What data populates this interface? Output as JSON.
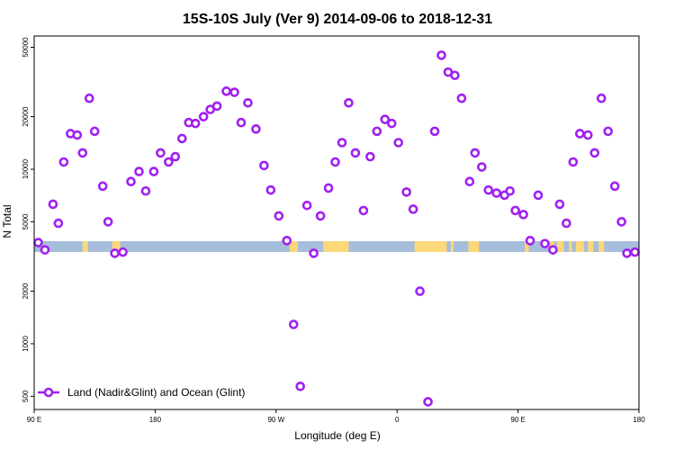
{
  "chart_data": {
    "type": "scatter",
    "title": "15S-10S July (Ver 9)   2014-09-06 to 2018-12-31",
    "xlabel": "Longitude (deg E)",
    "ylabel": "N Total",
    "x_ticks": [
      {
        "value": 90,
        "label": "90 E"
      },
      {
        "value": 180,
        "label": "180"
      },
      {
        "value": 270,
        "label": "90 W"
      },
      {
        "value": 360,
        "label": "0"
      },
      {
        "value": 450,
        "label": "90 E"
      },
      {
        "value": 540,
        "label": "180"
      }
    ],
    "y_scale": "log",
    "y_ticks": [
      500,
      1000,
      2000,
      5000,
      10000,
      20000,
      50000
    ],
    "xlim": [
      90,
      540
    ],
    "ylim": [
      420,
      58000
    ],
    "legend": {
      "position": "bottom-left",
      "label": "Land (Nadir&Glint) and Ocean (Glint)"
    },
    "marker_color": "#a020f0",
    "strip_colors": {
      "ocean": "#a6bddb",
      "land": "#fcd87a"
    },
    "land_segments": [
      [
        126,
        130
      ],
      [
        148,
        154
      ],
      [
        280,
        282
      ],
      [
        282,
        286
      ],
      [
        305,
        324
      ],
      [
        373,
        377
      ],
      [
        377,
        397
      ],
      [
        400,
        402
      ],
      [
        413,
        417
      ],
      [
        416,
        421
      ],
      [
        455,
        458
      ],
      [
        474,
        477
      ],
      [
        479,
        484
      ],
      [
        488,
        490
      ],
      [
        493,
        499
      ],
      [
        502,
        506
      ],
      [
        510,
        514
      ]
    ],
    "series": [
      {
        "name": "Land (Nadir&Glint) and Ocean (Glint)",
        "points": [
          [
            93,
            3800
          ],
          [
            98,
            3450
          ],
          [
            104,
            6300
          ],
          [
            108,
            4900
          ],
          [
            112,
            11000
          ],
          [
            117,
            16000
          ],
          [
            122,
            15700
          ],
          [
            126,
            12400
          ],
          [
            131,
            25500
          ],
          [
            135,
            16500
          ],
          [
            141,
            8000
          ],
          [
            145,
            5000
          ],
          [
            150,
            3300
          ],
          [
            156,
            3350
          ],
          [
            162,
            8500
          ],
          [
            168,
            9700
          ],
          [
            173,
            7500
          ],
          [
            179,
            9700
          ],
          [
            184,
            12400
          ],
          [
            190,
            11000
          ],
          [
            195,
            11800
          ],
          [
            200,
            15000
          ],
          [
            205,
            18500
          ],
          [
            210,
            18300
          ],
          [
            216,
            20000
          ],
          [
            221,
            22000
          ],
          [
            226,
            23000
          ],
          [
            233,
            28000
          ],
          [
            239,
            27600
          ],
          [
            244,
            18500
          ],
          [
            249,
            24000
          ],
          [
            255,
            17000
          ],
          [
            261,
            10500
          ],
          [
            266,
            7600
          ],
          [
            272,
            5400
          ],
          [
            278,
            3900
          ],
          [
            283,
            1290
          ],
          [
            288,
            570
          ],
          [
            293,
            6200
          ],
          [
            298,
            3300
          ],
          [
            303,
            5400
          ],
          [
            309,
            7800
          ],
          [
            314,
            11000
          ],
          [
            319,
            14200
          ],
          [
            324,
            24000
          ],
          [
            329,
            12400
          ],
          [
            335,
            5800
          ],
          [
            340,
            11800
          ],
          [
            345,
            16500
          ],
          [
            351,
            19300
          ],
          [
            356,
            18300
          ],
          [
            361,
            14200
          ],
          [
            367,
            7400
          ],
          [
            372,
            5900
          ],
          [
            377,
            2000
          ],
          [
            383,
            465
          ],
          [
            388,
            16500
          ],
          [
            393,
            45000
          ],
          [
            398,
            36000
          ],
          [
            403,
            34500
          ],
          [
            408,
            25500
          ],
          [
            414,
            8500
          ],
          [
            418,
            12400
          ],
          [
            423,
            10300
          ],
          [
            428,
            7600
          ],
          [
            434,
            7300
          ],
          [
            440,
            7100
          ],
          [
            444,
            7500
          ],
          [
            448,
            5800
          ],
          [
            454,
            5500
          ],
          [
            459,
            3900
          ],
          [
            465,
            7100
          ],
          [
            470,
            3750
          ],
          [
            476,
            3450
          ],
          [
            481,
            6300
          ],
          [
            486,
            4900
          ],
          [
            491,
            11000
          ],
          [
            496,
            16000
          ],
          [
            502,
            15700
          ],
          [
            507,
            12400
          ],
          [
            512,
            25500
          ],
          [
            517,
            16500
          ],
          [
            522,
            8000
          ],
          [
            527,
            5000
          ],
          [
            531,
            3300
          ],
          [
            537,
            3350
          ]
        ]
      }
    ]
  }
}
